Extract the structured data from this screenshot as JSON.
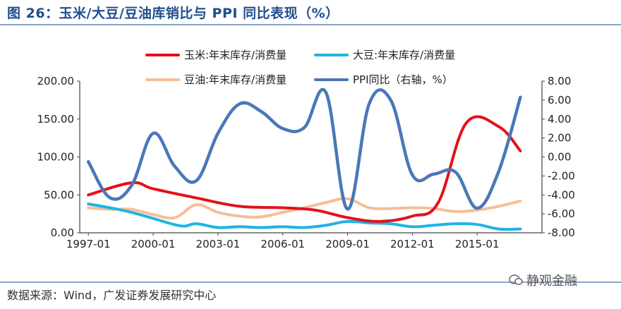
{
  "header": {
    "title": "图 26：玉米/大豆/豆油库销比与 PPI 同比表现（%）"
  },
  "footer": {
    "source": "数据来源：Wind，广发证券发展研究中心",
    "watermark": "静观金融"
  },
  "colors": {
    "corn": "#e3121b",
    "soy": "#1fb3e6",
    "soyoil": "#f6be96",
    "ppi": "#4a78b8"
  },
  "chart_data": {
    "type": "line",
    "x_tick_labels": [
      "1997-01",
      "2000-01",
      "2003-01",
      "2006-01",
      "2009-01",
      "2012-01",
      "2015-01"
    ],
    "y_left": {
      "ylim": [
        0,
        200
      ],
      "ticks": [
        "0.00",
        "50.00",
        "100.00",
        "150.00",
        "200.00"
      ]
    },
    "y_right": {
      "ylim": [
        -8,
        8
      ],
      "ticks": [
        "-8.00",
        "-6.00",
        "-4.00",
        "-2.00",
        "0.00",
        "2.00",
        "4.00",
        "6.00",
        "8.00"
      ]
    },
    "series": [
      {
        "name": "玉米:年末库存/消费量",
        "axis": "left",
        "color": "#e3121b",
        "x": [
          1997,
          1999,
          2000,
          2002,
          2004,
          2006,
          2007.5,
          2009,
          2010.5,
          2012,
          2013.2,
          2014.5,
          2016,
          2017
        ],
        "values": [
          50,
          66,
          58,
          46,
          35,
          33,
          30,
          20,
          15,
          22,
          40,
          145,
          140,
          108
        ]
      },
      {
        "name": "大豆:年末库存/消费量",
        "axis": "left",
        "color": "#1fb3e6",
        "x": [
          1997,
          1998,
          1999,
          2000,
          2001.3,
          2002,
          2003,
          2004,
          2005,
          2006,
          2007,
          2008,
          2009,
          2010,
          2011,
          2012,
          2013,
          2014,
          2015,
          2016,
          2017
        ],
        "values": [
          38,
          33,
          27,
          19,
          9,
          12,
          7,
          8,
          7,
          8,
          7,
          10,
          15,
          13,
          12,
          8,
          10,
          12,
          11,
          5,
          5
        ]
      },
      {
        "name": "豆油:年末库存/消费量",
        "axis": "left",
        "color": "#f6be96",
        "x": [
          1997,
          1998,
          1999,
          2000,
          2001,
          2002,
          2003,
          2004,
          2005,
          2006,
          2007,
          2008,
          2009,
          2010,
          2011,
          2012,
          2013,
          2014,
          2015,
          2016,
          2017
        ],
        "values": [
          33,
          31,
          31,
          24,
          20,
          37,
          27,
          22,
          21,
          27,
          33,
          40,
          45,
          33,
          32,
          33,
          32,
          28,
          30,
          35,
          42
        ]
      },
      {
        "name": "PPI同比（右轴，%）",
        "axis": "right",
        "color": "#4a78b8",
        "x": [
          1997,
          1998,
          1999,
          2000,
          2001,
          2002,
          2003,
          2004,
          2005,
          2006,
          2007,
          2008,
          2009,
          2010,
          2011,
          2012,
          2013,
          2014,
          2015,
          2016,
          2017
        ],
        "values": [
          -0.5,
          -4.3,
          -3.0,
          2.5,
          -1.0,
          -2.5,
          2.5,
          5.6,
          4.8,
          3.0,
          3.1,
          6.8,
          -5.5,
          5.6,
          6.0,
          -1.9,
          -1.8,
          -1.6,
          -5.4,
          -1.5,
          6.3
        ]
      }
    ]
  }
}
